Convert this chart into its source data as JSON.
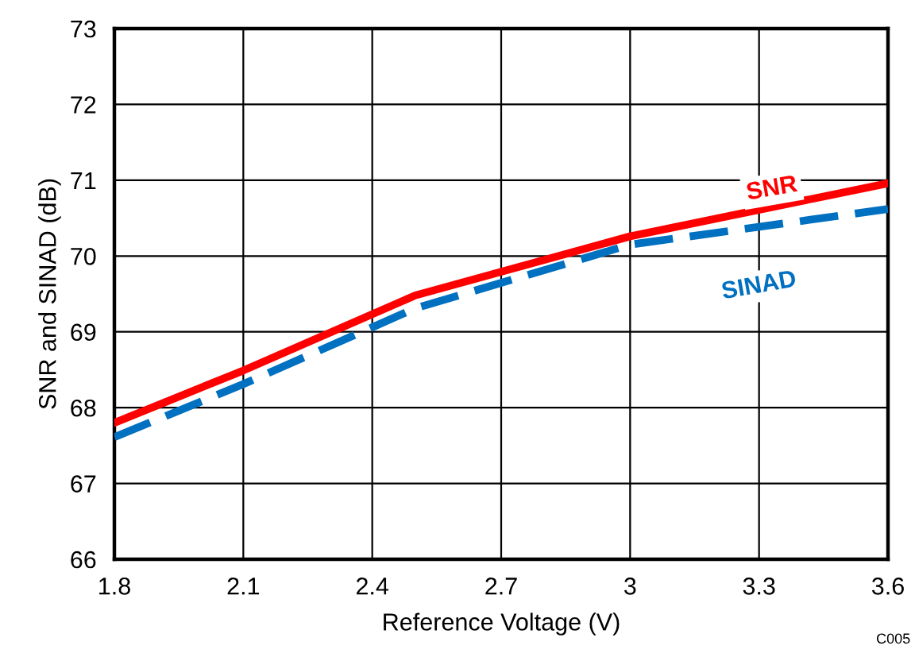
{
  "chart_data": {
    "type": "line",
    "xlabel": "Reference Voltage (V)",
    "ylabel": "SNR and SINAD (dB)",
    "xlim": [
      1.8,
      3.6
    ],
    "xticks": [
      1.8,
      2.1,
      2.4,
      2.7,
      3,
      3.3,
      3.6
    ],
    "ylim": [
      66,
      73
    ],
    "yticks": [
      66,
      67,
      68,
      69,
      70,
      71,
      72,
      73
    ],
    "grid": true,
    "legend": false,
    "series": [
      {
        "name": "SNR",
        "color": "#ff0000",
        "line_style": "solid",
        "x": [
          1.8,
          2.1,
          2.5,
          3.0,
          3.6
        ],
        "values": [
          67.8,
          68.49,
          69.48,
          70.26,
          70.96
        ]
      },
      {
        "name": "SINAD",
        "color": "#0070c0",
        "line_style": "dashed",
        "x": [
          1.8,
          2.1,
          2.5,
          3.0,
          3.6
        ],
        "values": [
          67.61,
          68.31,
          69.31,
          70.15,
          70.62
        ]
      }
    ],
    "annotations": [
      "C005"
    ]
  }
}
